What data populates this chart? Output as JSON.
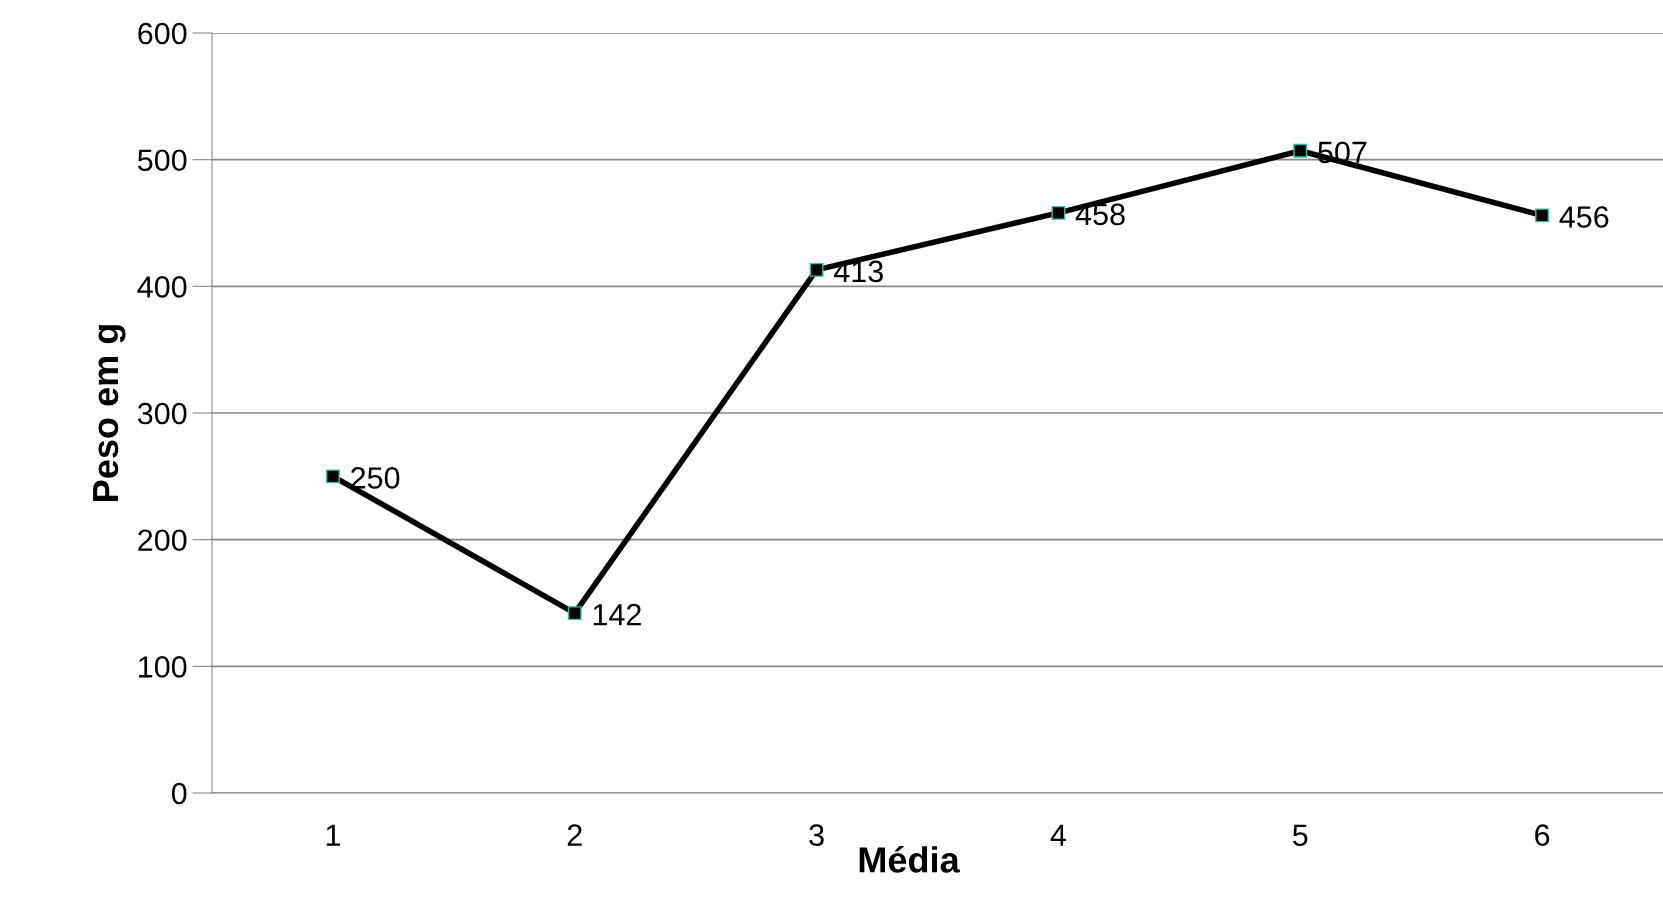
{
  "chart_data": {
    "type": "line",
    "xlabel": "Média",
    "ylabel": "Peso em g",
    "categories": [
      "1",
      "2",
      "3",
      "4",
      "5",
      "6"
    ],
    "series": [
      {
        "color": "#000000",
        "values": [
          250,
          142,
          413,
          458,
          507,
          456
        ]
      }
    ],
    "ylim": [
      0,
      600
    ],
    "yticks": [
      0,
      100,
      200,
      300,
      400,
      500,
      600
    ],
    "grid": "y",
    "data_labels": true,
    "marker": "square",
    "line_style": "solid",
    "legend": false
  }
}
